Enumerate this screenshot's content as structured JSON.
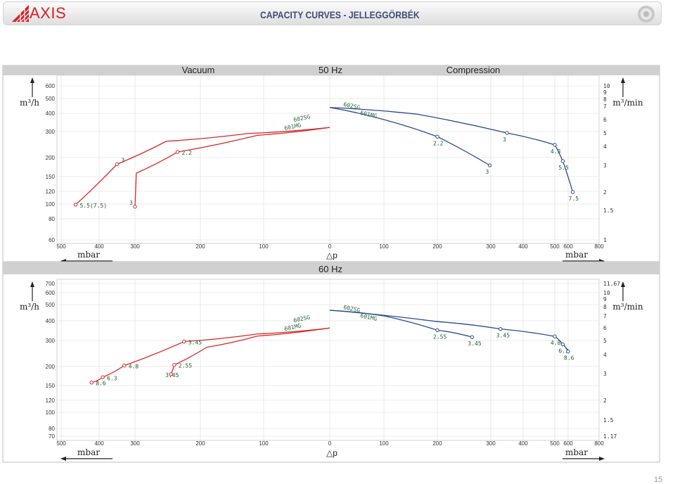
{
  "header": {
    "logo_text": "AXIS",
    "title": "CAPACITY CURVES - JELLEGGÖRBÉK"
  },
  "page_number": "15",
  "colors": {
    "vacuum_curve": "#d62a2a",
    "compression_curve": "#2a4a8f",
    "label_text": "#22663a",
    "band": "#d0d0d0",
    "grid": "#d9d9d9"
  },
  "chart_data": [
    {
      "type": "line",
      "band": {
        "left": "Vacuum",
        "center": "50 Hz",
        "right": "Compression"
      },
      "x_ticks_left": [
        "500",
        "400",
        "300",
        "200",
        "100",
        "0"
      ],
      "x_ticks_right": [
        "100",
        "200",
        "300",
        "400",
        "500",
        "600",
        "800"
      ],
      "x_unit_left": "mbar",
      "x_unit_right": "mbar",
      "x_symbol": "△p",
      "y_left_ticks": [
        "600",
        "500",
        "400",
        "300",
        "200",
        "150",
        "120",
        "100",
        "80",
        "60"
      ],
      "y_right_ticks": [
        "10",
        "9",
        "8",
        "7",
        "6",
        "5",
        "4",
        "3",
        "2",
        "1.5",
        "1"
      ],
      "y_left_unit": "m³/h",
      "y_right_unit": "m³/min",
      "series": [
        {
          "side": "vacuum",
          "name": "602SG",
          "points": [
            [
              0,
              320
            ],
            [
              -125,
              291
            ],
            [
              -252,
              258
            ],
            [
              -350,
              181
            ],
            [
              -462,
              99
            ]
          ],
          "labels": [
            "",
            "",
            "",
            "3",
            "5.5(7.5)"
          ]
        },
        {
          "side": "vacuum",
          "name": "601MG",
          "points": [
            [
              0,
              320
            ],
            [
              -110,
              283
            ],
            [
              -235,
              218
            ],
            [
              -298,
              158
            ],
            [
              -300,
              96
            ]
          ],
          "labels": [
            "",
            "",
            "2.2",
            "",
            "3"
          ]
        },
        {
          "side": "compression",
          "name": "602SG",
          "points": [
            [
              0,
              6.9
            ],
            [
              160,
              6.4
            ],
            [
              350,
              5.0
            ],
            [
              500,
              4.1
            ],
            [
              560,
              3.2
            ],
            [
              630,
              2.0
            ]
          ],
          "labels": [
            "",
            "",
            "3",
            "4.3",
            "5.5",
            "7.5"
          ]
        },
        {
          "side": "compression",
          "name": "601MG",
          "points": [
            [
              0,
              6.9
            ],
            [
              100,
              6.0
            ],
            [
              200,
              4.7
            ],
            [
              298,
              3.0
            ]
          ],
          "labels": [
            "",
            "",
            "2.2",
            "3"
          ]
        }
      ]
    },
    {
      "type": "line",
      "band": {
        "left": "",
        "center": "60 Hz",
        "right": ""
      },
      "x_ticks_left": [
        "500",
        "400",
        "300",
        "200",
        "100",
        "0"
      ],
      "x_ticks_right": [
        "100",
        "200",
        "300",
        "400",
        "500",
        "600",
        "800"
      ],
      "x_unit_left": "mbar",
      "x_unit_right": "mbar",
      "x_symbol": "△p",
      "y_left_ticks": [
        "700",
        "600",
        "500",
        "400",
        "300",
        "200",
        "150",
        "120",
        "100",
        "80",
        "70"
      ],
      "y_right_ticks": [
        "11.67",
        "10",
        "9",
        "8",
        "7",
        "6",
        "5",
        "4",
        "3",
        "2",
        "1.5",
        "1.17"
      ],
      "y_left_unit": "m³/h",
      "y_right_unit": "m³/min",
      "series": [
        {
          "side": "vacuum",
          "name": "602SG",
          "points": [
            [
              0,
              360
            ],
            [
              -110,
              330
            ],
            [
              -225,
              295
            ],
            [
              -330,
              203
            ],
            [
              -390,
              170
            ],
            [
              -420,
              157
            ]
          ],
          "labels": [
            "",
            "",
            "3.45",
            "4.8",
            "6.3",
            "8.6"
          ]
        },
        {
          "side": "vacuum",
          "name": "601MG",
          "points": [
            [
              0,
              360
            ],
            [
              -110,
              320
            ],
            [
              -190,
              270
            ],
            [
              -240,
              205
            ],
            [
              -245,
              178
            ]
          ],
          "labels": [
            "",
            "",
            "",
            "2.55",
            "3.45"
          ]
        },
        {
          "side": "compression",
          "name": "602SG",
          "points": [
            [
              0,
              7.6
            ],
            [
              200,
              6.5
            ],
            [
              330,
              5.9
            ],
            [
              500,
              5.3
            ],
            [
              560,
              4.7
            ],
            [
              600,
              4.2
            ]
          ],
          "labels": [
            "",
            "",
            "3.45",
            "4.8",
            "6.3",
            "8.6"
          ]
        },
        {
          "side": "compression",
          "name": "601MG",
          "points": [
            [
              0,
              7.6
            ],
            [
              100,
              7.0
            ],
            [
              200,
              5.8
            ],
            [
              265,
              5.25
            ]
          ],
          "labels": [
            "",
            "",
            "2.55",
            "3.45"
          ]
        }
      ]
    }
  ]
}
